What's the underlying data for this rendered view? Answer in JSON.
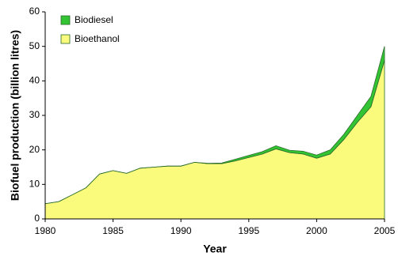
{
  "chart_data": {
    "type": "stacked_area",
    "x_label": "Year",
    "y_label": "Biofuel production (billion litres)",
    "x": [
      1980,
      1981,
      1982,
      1983,
      1984,
      1985,
      1986,
      1987,
      1988,
      1989,
      1990,
      1991,
      1992,
      1993,
      1994,
      1995,
      1996,
      1997,
      1998,
      1999,
      2000,
      2001,
      2002,
      2003,
      2004,
      2005
    ],
    "series": [
      {
        "name": "Bioethanol",
        "color": "#fafa7d",
        "values": [
          4.4,
          5,
          7,
          9,
          13,
          14,
          13.2,
          14.7,
          15,
          15.3,
          15.3,
          16.4,
          16,
          16,
          16.8,
          17.8,
          18.8,
          20.3,
          19.2,
          18.8,
          17.6,
          18.8,
          23,
          28,
          32.5,
          46
        ]
      },
      {
        "name": "Biodiesel",
        "color": "#33c433",
        "values": [
          0,
          0,
          0,
          0,
          0,
          0,
          0,
          0,
          0,
          0,
          0,
          0,
          0.1,
          0.2,
          0.5,
          0.6,
          0.7,
          0.9,
          0.7,
          0.8,
          0.9,
          1.2,
          1.5,
          2,
          3,
          4
        ]
      }
    ],
    "xlim": [
      1980,
      2005
    ],
    "xticks": [
      1980,
      1985,
      1990,
      1995,
      2000,
      2005
    ],
    "ylim": [
      0,
      60
    ],
    "yticks": [
      0,
      10,
      20,
      30,
      40,
      50,
      60
    ],
    "legend": "top-left"
  }
}
